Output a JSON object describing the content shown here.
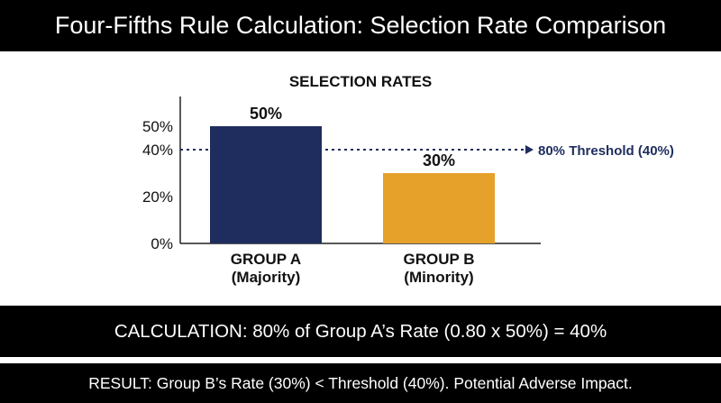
{
  "header": {
    "title": "Four-Fifths Rule Calculation: Selection Rate Comparison"
  },
  "chart_data": {
    "type": "bar",
    "title": "SELECTION RATES",
    "categories": [
      "GROUP A",
      "GROUP B"
    ],
    "category_sublabels": [
      "(Majority)",
      "(Minority)"
    ],
    "values": [
      50,
      30
    ],
    "value_labels": [
      "50%",
      "30%"
    ],
    "y_ticks": [
      0,
      20,
      40,
      50
    ],
    "y_tick_labels": [
      "0%",
      "20%",
      "40%",
      "50%"
    ],
    "ylim": [
      0,
      50
    ],
    "grid": false,
    "colors": [
      "#1f2d5e",
      "#e5a12a"
    ],
    "threshold": {
      "value": 40,
      "label": "80% Threshold (40%)",
      "color": "#1e2d5e"
    }
  },
  "footer": {
    "calculation": "CALCULATION: 80% of Group A’s Rate (0.80 x 50%) = 40%",
    "result": "RESULT: Group B’s Rate (30%) < Threshold (40%). Potential Adverse Impact."
  }
}
